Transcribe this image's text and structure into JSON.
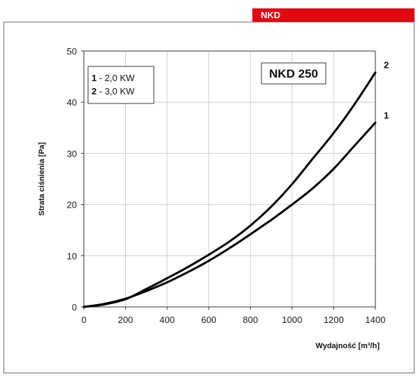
{
  "header": {
    "label": "NKD",
    "accent_color": "#e30613"
  },
  "chart_data": {
    "type": "line",
    "title": "NKD 250",
    "xlabel": "Wydajność [m³/h]",
    "ylabel": "Strata ciśnienia [Pa]",
    "xlim": [
      0,
      1400
    ],
    "ylim": [
      0,
      50
    ],
    "x_ticks": [
      "0",
      "200",
      "400",
      "600",
      "800",
      "1000",
      "1200",
      "1400"
    ],
    "y_ticks": [
      "0",
      "10",
      "20",
      "30",
      "40",
      "50"
    ],
    "grid": true,
    "legend": {
      "placement": "top-left",
      "entries": [
        {
          "key": "1",
          "text": " - 2,0 KW"
        },
        {
          "key": "2",
          "text": " - 3,0 KW"
        }
      ]
    },
    "series": [
      {
        "name": "1",
        "x": [
          0,
          100,
          200,
          300,
          400,
          500,
          600,
          700,
          800,
          900,
          1000,
          1100,
          1200,
          1300,
          1400
        ],
        "y": [
          0,
          0.6,
          1.6,
          3.1,
          4.8,
          6.8,
          9.0,
          11.5,
          14.2,
          17.0,
          20.0,
          23.2,
          27.0,
          31.5,
          36.0
        ]
      },
      {
        "name": "2",
        "x": [
          0,
          100,
          200,
          300,
          400,
          500,
          600,
          700,
          800,
          900,
          1000,
          1100,
          1200,
          1300,
          1400
        ],
        "y": [
          0,
          0.5,
          1.5,
          3.5,
          5.6,
          7.8,
          10.2,
          12.8,
          15.9,
          19.6,
          24.0,
          29.0,
          34.0,
          39.6,
          45.8
        ]
      }
    ]
  }
}
